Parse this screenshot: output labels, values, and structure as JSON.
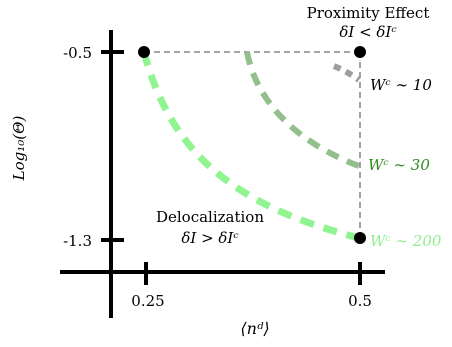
{
  "axes": {
    "ylabel": "Log₁₀(Θ)",
    "xlabel": "⟨nᵈ⟩",
    "x_ticks": [
      "0.25",
      "0.5"
    ],
    "y_ticks": [
      "-0.5",
      "-1.3"
    ]
  },
  "regions": {
    "proximity_title": "Proximity Effect",
    "proximity_condition": "δI < δIᶜ",
    "delocalization_title": "Delocalization",
    "delocalization_condition": "δI > δIᶜ"
  },
  "curves": [
    {
      "label": "Wᶜ ∼ 10",
      "color": "#999999"
    },
    {
      "label": "Wᶜ ∼ 30",
      "color": "#2e8b1f"
    },
    {
      "label": "Wᶜ ∼ 200",
      "color": "#90ee90"
    }
  ],
  "colors": {
    "axis": "#000000",
    "dashed_guide": "#888888",
    "curve_gray": "#9e9e9e",
    "curve_darkgreen": "#92bf8c",
    "curve_lightgreen": "#90f590",
    "label_green": "#2e8b1f"
  }
}
